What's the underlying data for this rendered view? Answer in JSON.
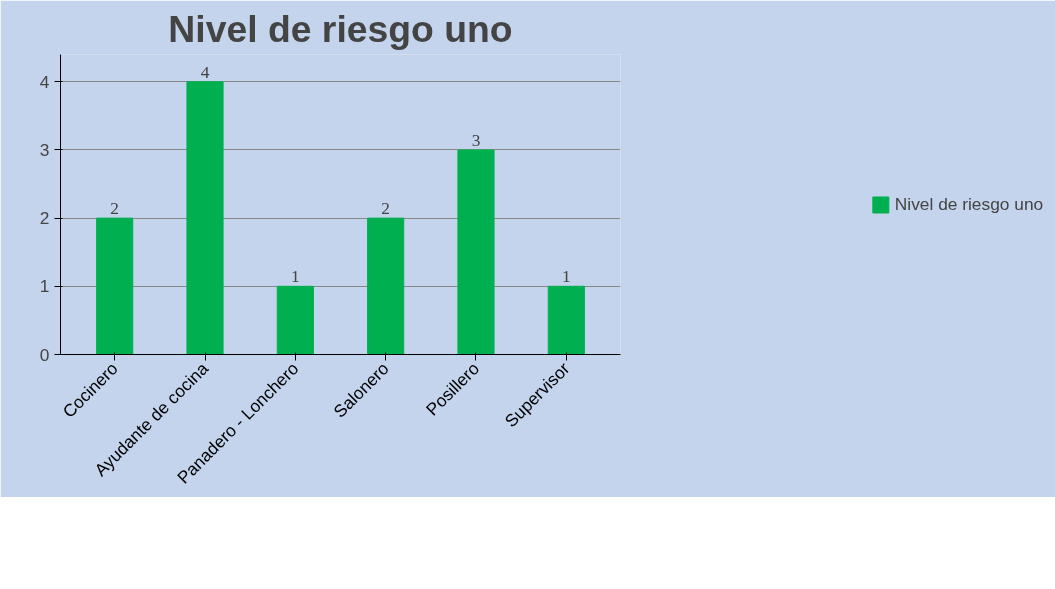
{
  "chart_data": {
    "type": "bar",
    "title": "Nivel de riesgo uno",
    "categories": [
      "Cocinero",
      "Ayudante de cocina",
      "Panadero - Lonchero",
      "Salonero",
      "Posillero",
      "Supervisor"
    ],
    "series": [
      {
        "name": "Nivel de riesgo uno",
        "color": "#00b050",
        "values": [
          2,
          4,
          1,
          2,
          3,
          1
        ]
      }
    ],
    "ylim": [
      0,
      4.4
    ],
    "yticks": [
      0,
      1,
      2,
      3,
      4
    ],
    "grid": "y",
    "legend": "right",
    "data_labels": true
  }
}
